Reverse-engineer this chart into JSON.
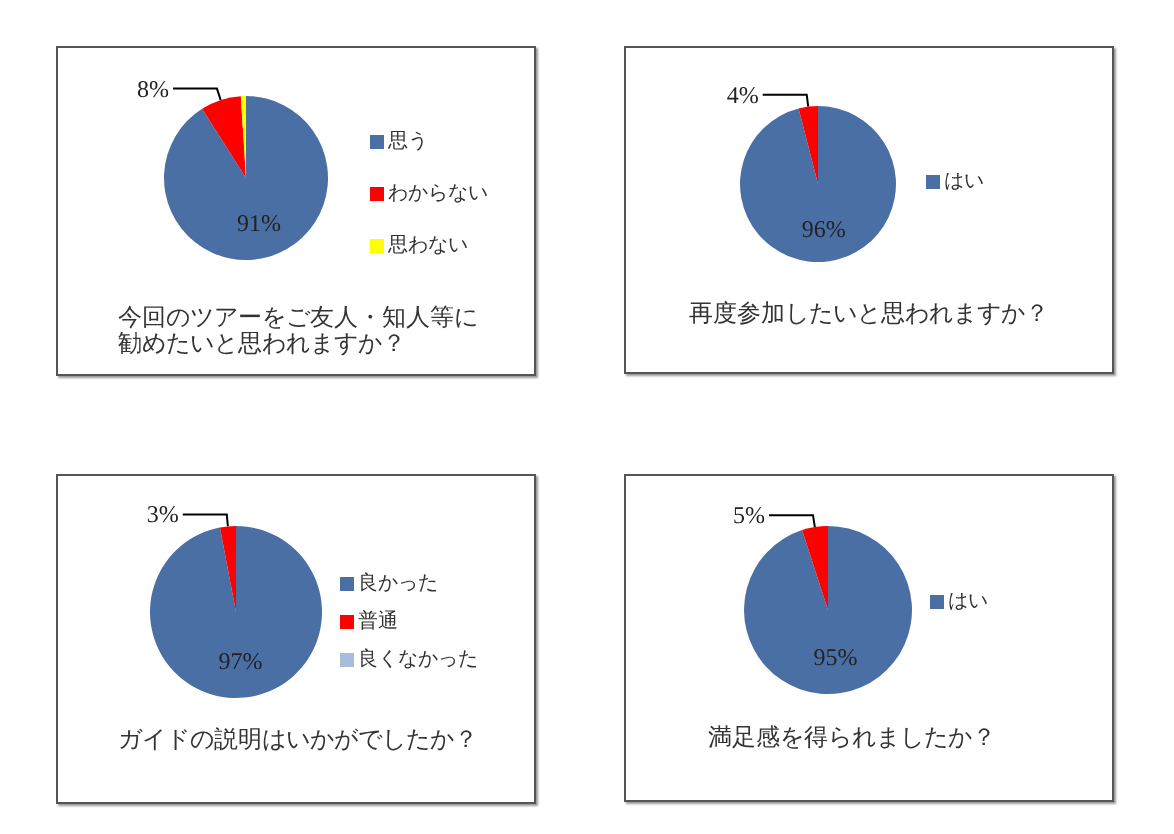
{
  "chart_data": [
    {
      "type": "pie",
      "title": "今回のツアーをご友人・知人等に勧めたいと思われますか？",
      "categories": [
        "思う",
        "わからない",
        "思わない"
      ],
      "values": [
        91,
        8,
        1
      ],
      "colors": [
        "#4a6fa5",
        "#ff0000",
        "#ffff00"
      ],
      "value_labels": [
        "91%",
        "8%",
        null
      ],
      "legend": "right"
    },
    {
      "type": "pie",
      "title": "再度参加したいと思われますか？",
      "categories": [
        "はい",
        null
      ],
      "values": [
        96,
        4
      ],
      "colors": [
        "#4a6fa5",
        "#ff0000"
      ],
      "value_labels": [
        "96%",
        "4%"
      ],
      "legend": "right"
    },
    {
      "type": "pie",
      "title": "ガイドの説明はいかがでしたか？",
      "categories": [
        "良かった",
        "普通",
        "良くなかった"
      ],
      "values": [
        97,
        3,
        0
      ],
      "colors": [
        "#4a6fa5",
        "#ff0000",
        "#a9bcdc"
      ],
      "value_labels": [
        "97%",
        "3%",
        null
      ],
      "legend": "right"
    },
    {
      "type": "pie",
      "title": "満足感を得られましたか？",
      "categories": [
        "はい",
        null
      ],
      "values": [
        95,
        5
      ],
      "colors": [
        "#4a6fa5",
        "#ff0000"
      ],
      "value_labels": [
        "95%",
        "5%"
      ],
      "legend": "right"
    }
  ]
}
